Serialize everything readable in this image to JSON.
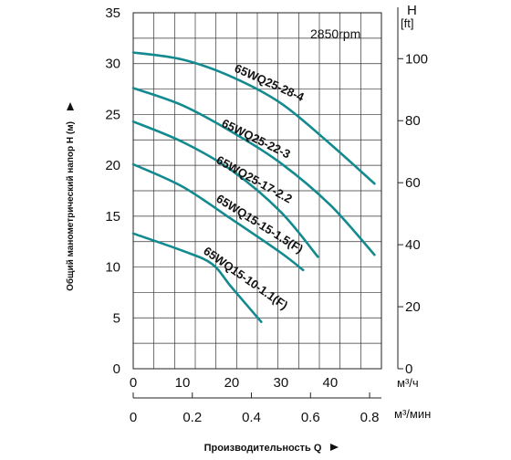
{
  "chart_data": {
    "type": "line",
    "rpm_label": "2850rpm",
    "ylabel": "Общий манометрический напор H (м)",
    "xlabel": "Производительность Q",
    "y_axis": {
      "ticks": [
        "0",
        "5",
        "10",
        "15",
        "20",
        "25",
        "30",
        "35"
      ],
      "ylim": [
        0,
        35
      ]
    },
    "y2_axis": {
      "title_symbol": "H",
      "title_unit": "[ft]",
      "ticks": [
        "0",
        "20",
        "40",
        "60",
        "80",
        "100"
      ],
      "ylim_ft": [
        0,
        114.8
      ]
    },
    "x_axis_m3h": {
      "ticks": [
        "0",
        "10",
        "20",
        "30",
        "40"
      ],
      "unit": "м³/ч",
      "xlim": [
        0,
        50.4
      ]
    },
    "x_axis_m3min": {
      "ticks": [
        "0",
        "0.2",
        "0.4",
        "0.6",
        "0.8"
      ],
      "unit": "м³/мин",
      "xlim": [
        0,
        0.84
      ]
    },
    "grid": true,
    "series": [
      {
        "name": "65WQ25-28-4",
        "color": "#138a8f",
        "x": [
          0,
          10,
          20,
          30,
          40,
          49
        ],
        "y": [
          31.1,
          30.4,
          28.7,
          26.1,
          22.1,
          18.2
        ]
      },
      {
        "name": "65WQ25-22-3",
        "color": "#138a8f",
        "x": [
          0,
          10,
          20,
          30,
          40,
          49
        ],
        "y": [
          27.6,
          25.9,
          23.3,
          20.2,
          16.1,
          11.2
        ]
      },
      {
        "name": "65WQ25-17-2.2",
        "color": "#138a8f",
        "x": [
          0,
          10,
          20,
          30,
          37.5
        ],
        "y": [
          24.3,
          22.3,
          19.5,
          15.4,
          11.0
        ]
      },
      {
        "name": "65WQ15-15-1.5(F)",
        "color": "#138a8f",
        "x": [
          0,
          10,
          20,
          30,
          34.5
        ],
        "y": [
          20.1,
          17.9,
          14.7,
          11.4,
          9.7
        ]
      },
      {
        "name": "65WQ15-10-1.1(F)",
        "color": "#138a8f",
        "x": [
          0,
          10,
          16,
          20,
          26
        ],
        "y": [
          13.3,
          11.6,
          10.3,
          8.0,
          4.6
        ]
      }
    ]
  }
}
